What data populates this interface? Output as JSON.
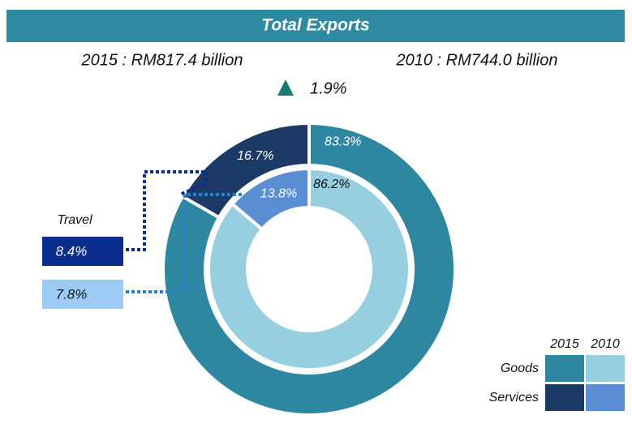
{
  "chart_data": {
    "type": "nested-donut",
    "title": "Total Exports",
    "subtitles": [
      "2015 : RM817.4 billion",
      "2010 : RM744.0 billion"
    ],
    "growth": {
      "value": 1.9,
      "label": "1.9%"
    },
    "categories": [
      "Goods",
      "Services"
    ],
    "series": [
      {
        "name": "2015",
        "colors": [
          "#2e87a0",
          "#1c3a66"
        ],
        "values": [
          83.3,
          16.7
        ],
        "value_labels": [
          "83.3%",
          "16.7%"
        ]
      },
      {
        "name": "2010",
        "colors": [
          "#96cfe0",
          "#5b8fd4"
        ],
        "values": [
          86.2,
          13.8
        ],
        "value_labels": [
          "86.2%",
          "13.8%"
        ]
      }
    ],
    "travel": {
      "label": "Travel",
      "values": [
        8.4,
        7.8
      ],
      "value_labels": [
        "8.4%",
        "7.8%"
      ],
      "colors": [
        "#0a2d8f",
        "#9ccbf5"
      ]
    }
  }
}
